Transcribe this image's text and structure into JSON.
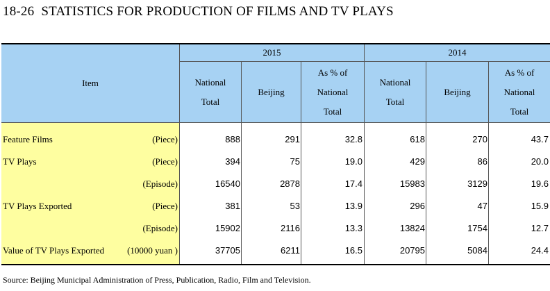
{
  "title": {
    "number": "18-26",
    "text": "STATISTICS FOR PRODUCTION OF FILMS AND TV PLAYS"
  },
  "header": {
    "item": "Item",
    "years": [
      "2015",
      "2014"
    ],
    "columns": [
      "National\nTotal",
      "Beijing",
      "As % of\nNational\nTotal"
    ]
  },
  "rows": [
    {
      "name": "Feature Films",
      "unit": "(Piece)",
      "values": [
        "888",
        "291",
        "32.8",
        "618",
        "270",
        "43.7"
      ]
    },
    {
      "name": "TV Plays",
      "unit": "(Piece)",
      "values": [
        "394",
        "75",
        "19.0",
        "429",
        "86",
        "20.0"
      ]
    },
    {
      "name": "",
      "unit": "(Episode)",
      "values": [
        "16540",
        "2878",
        "17.4",
        "15983",
        "3129",
        "19.6"
      ]
    },
    {
      "name": "TV Plays Exported",
      "unit": "(Piece)",
      "values": [
        "381",
        "53",
        "13.9",
        "296",
        "47",
        "15.9"
      ]
    },
    {
      "name": "",
      "unit": "(Episode)",
      "values": [
        "15902",
        "2116",
        "13.3",
        "13824",
        "1754",
        "12.7"
      ]
    },
    {
      "name": "Value of TV Plays Exported",
      "unit": "(10000 yuan )",
      "values": [
        "37705",
        "6211",
        "16.5",
        "20795",
        "5084",
        "24.4"
      ]
    }
  ],
  "source": "Source: Beijing Municipal Administration of Press, Publication, Radio, Film and Television."
}
